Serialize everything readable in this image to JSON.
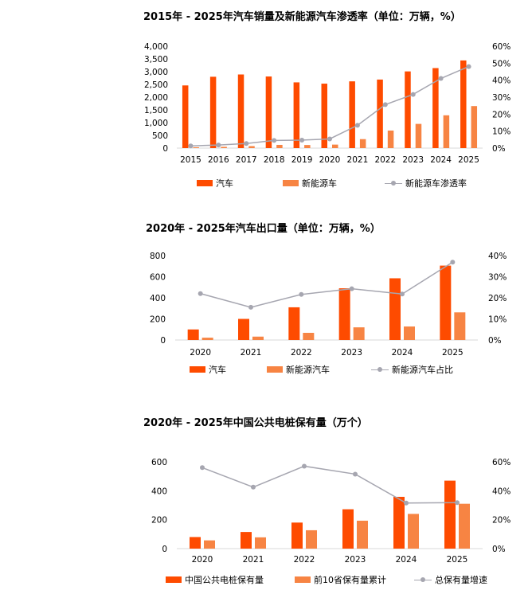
{
  "colors": {
    "primary_bar": "#fe4b00",
    "secondary_bar": "#f78443",
    "line": "#a6a6b0"
  },
  "chart_data": [
    {
      "type": "bar",
      "title": "2015年 - 2025年汽车销量及新能源汽车渗透率（单位：万辆，%）",
      "categories": [
        "2015",
        "2016",
        "2017",
        "2018",
        "2019",
        "2020",
        "2021",
        "2022",
        "2023",
        "2024",
        "2025"
      ],
      "series": [
        {
          "name": "汽车",
          "kind": "bar",
          "axis": "left",
          "values": [
            2460,
            2800,
            2890,
            2810,
            2580,
            2530,
            2620,
            2690,
            3010,
            3140,
            3440
          ]
        },
        {
          "name": "新能源车",
          "kind": "bar",
          "axis": "left",
          "values": [
            33,
            51,
            78,
            126,
            121,
            137,
            352,
            689,
            950,
            1287,
            1650
          ]
        },
        {
          "name": "新能源车渗透率",
          "kind": "line",
          "axis": "right",
          "values": [
            1.3,
            1.8,
            2.7,
            4.5,
            4.7,
            5.4,
            13.4,
            25.6,
            31.6,
            41.0,
            48.0
          ]
        }
      ],
      "ylim": [
        0,
        4000
      ],
      "yticks": [
        "0",
        "500",
        "1,000",
        "1,500",
        "2,000",
        "2,500",
        "3,000",
        "3,500",
        "4,000"
      ],
      "y2lim": [
        0,
        60
      ],
      "y2ticks": [
        "0%",
        "10%",
        "20%",
        "30%",
        "40%",
        "50%",
        "60%"
      ],
      "legend_position": "bottom"
    },
    {
      "type": "bar",
      "title": "2020年 - 2025年汽车出口量（单位：万辆，%）",
      "categories": [
        "2020",
        "2021",
        "2022",
        "2023",
        "2024",
        "2025"
      ],
      "series": [
        {
          "name": "汽车",
          "kind": "bar",
          "axis": "left",
          "values": [
            100,
            200,
            310,
            490,
            585,
            705
          ]
        },
        {
          "name": "新能源汽车",
          "kind": "bar",
          "axis": "left",
          "values": [
            22,
            32,
            68,
            120,
            128,
            262
          ]
        },
        {
          "name": "新能源汽车占比",
          "kind": "line",
          "axis": "right",
          "values": [
            22.0,
            15.5,
            21.6,
            24.3,
            21.8,
            36.9
          ]
        }
      ],
      "ylim": [
        0,
        800
      ],
      "yticks": [
        "0",
        "200",
        "400",
        "600",
        "800"
      ],
      "y2lim": [
        0,
        40
      ],
      "y2ticks": [
        "0%",
        "10%",
        "20%",
        "30%",
        "40%"
      ],
      "legend_position": "bottom"
    },
    {
      "type": "bar",
      "title": "2020年 - 2025年中国公共电桩保有量（万个）",
      "categories": [
        "2020",
        "2021",
        "2022",
        "2023",
        "2024",
        "2025"
      ],
      "series": [
        {
          "name": "中国公共电桩保有量",
          "kind": "bar",
          "axis": "left",
          "values": [
            80,
            115,
            180,
            272,
            358,
            470
          ]
        },
        {
          "name": "前10省保有量累计",
          "kind": "bar",
          "axis": "left",
          "values": [
            57,
            78,
            127,
            193,
            240,
            310
          ]
        },
        {
          "name": "总保有量增速",
          "kind": "line",
          "axis": "right",
          "values": [
            56,
            42.5,
            57,
            51.5,
            31.5,
            31.8
          ]
        }
      ],
      "ylim": [
        0,
        600
      ],
      "yticks": [
        "0",
        "200",
        "400",
        "600"
      ],
      "y2lim": [
        0,
        60
      ],
      "y2ticks": [
        "0%",
        "20%",
        "40%",
        "60%"
      ],
      "legend_position": "bottom"
    }
  ]
}
